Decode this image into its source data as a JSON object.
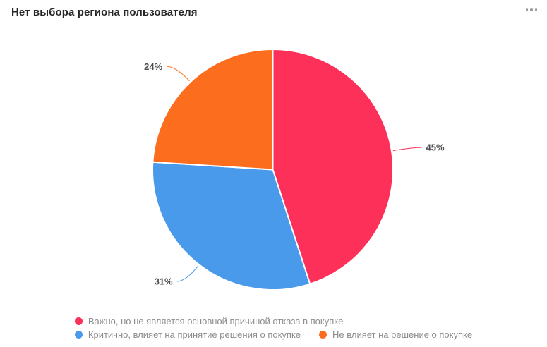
{
  "header": {
    "title": "Нет выбора региона пользователя",
    "menu_icon": "more-horizontal-icon"
  },
  "chart_data": {
    "type": "pie",
    "title": "Нет выбора региона пользователя",
    "unit": "%",
    "direction": "clockwise",
    "start_angle_deg": 0,
    "legend_position": "bottom",
    "categories": [
      "Важно, но не является основной причиной отказа в покупке",
      "Критично, влияет на принятие решения о покупке",
      "Не влияет на решение о покупке"
    ],
    "values": [
      45,
      31,
      24
    ],
    "slices": [
      {
        "name": "Важно, но не является основной причиной отказа в покупке",
        "value": 45,
        "display": "45%",
        "color": "#FC3058"
      },
      {
        "name": "Критично, влияет на принятие решения о покупке",
        "value": 31,
        "display": "31%",
        "color": "#4A9AEC"
      },
      {
        "name": "Не влияет на решение о покупке",
        "value": 24,
        "display": "24%",
        "color": "#FC6E1E"
      }
    ],
    "ui_colors": {
      "title_text": "#262626",
      "percent_label_text": "#4D4D4D",
      "legend_text": "#8C8C8C",
      "menu_icon": "#9B9B9B",
      "slice_separator": "#FFFFFF"
    }
  }
}
